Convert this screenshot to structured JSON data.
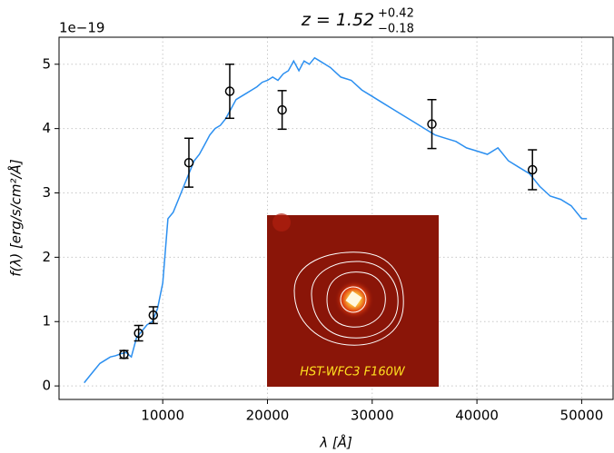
{
  "chart_data": {
    "type": "sed",
    "title": {
      "base": "z = 1.52",
      "upper": "+0.42",
      "lower": "−0.18"
    },
    "y_offset_label": "1e−19",
    "xlabel": "λ [Å]",
    "ylabel": "f(λ) [erg/s/cm²/Å]",
    "xlim": [
      100,
      53000
    ],
    "ylim": [
      -0.21,
      5.42
    ],
    "xticks": [
      10000,
      20000,
      30000,
      40000,
      50000
    ],
    "yticks": [
      0,
      1,
      2,
      3,
      4,
      5
    ],
    "grid": true,
    "model": {
      "color": "#2b8ff0",
      "x": [
        2500,
        3000,
        3500,
        4000,
        4500,
        5000,
        5500,
        6000,
        6500,
        7000,
        7500,
        8000,
        8500,
        9000,
        9500,
        10000,
        10500,
        11000,
        11500,
        12000,
        12500,
        13000,
        13500,
        14000,
        14500,
        15000,
        15500,
        16000,
        16500,
        17000,
        17500,
        18000,
        18500,
        19000,
        19500,
        20000,
        20500,
        21000,
        21500,
        22000,
        22500,
        23000,
        23500,
        24000,
        24500,
        25000,
        25500,
        26000,
        27000,
        28000,
        29000,
        30000,
        31000,
        32000,
        33000,
        34000,
        35000,
        36000,
        37000,
        38000,
        39000,
        40000,
        41000,
        42000,
        43000,
        44000,
        45000,
        46000,
        47000,
        48000,
        49000,
        50000,
        50500
      ],
      "values": [
        0.05,
        0.15,
        0.25,
        0.35,
        0.4,
        0.45,
        0.47,
        0.5,
        0.52,
        0.45,
        0.75,
        0.85,
        0.95,
        1.0,
        1.2,
        1.6,
        2.6,
        2.7,
        2.9,
        3.1,
        3.3,
        3.5,
        3.6,
        3.75,
        3.9,
        4.0,
        4.05,
        4.15,
        4.3,
        4.45,
        4.5,
        4.55,
        4.6,
        4.65,
        4.72,
        4.75,
        4.8,
        4.75,
        4.85,
        4.9,
        5.05,
        4.9,
        5.05,
        5.0,
        5.1,
        5.05,
        5.0,
        4.95,
        4.8,
        4.75,
        4.6,
        4.5,
        4.4,
        4.3,
        4.2,
        4.1,
        4.0,
        3.9,
        3.85,
        3.8,
        3.7,
        3.65,
        3.6,
        3.7,
        3.5,
        3.4,
        3.3,
        3.1,
        2.95,
        2.9,
        2.8,
        2.6,
        2.6
      ]
    },
    "points": {
      "color": "#000000",
      "x": [
        6300,
        7700,
        9100,
        12500,
        16400,
        21400,
        35700,
        45300
      ],
      "values": [
        0.49,
        0.82,
        1.1,
        3.47,
        4.58,
        4.29,
        4.07,
        3.36
      ],
      "errors": [
        0.06,
        0.12,
        0.13,
        0.38,
        0.42,
        0.3,
        0.38,
        0.31
      ]
    },
    "inset_label": "HST-WFC3 F160W"
  }
}
